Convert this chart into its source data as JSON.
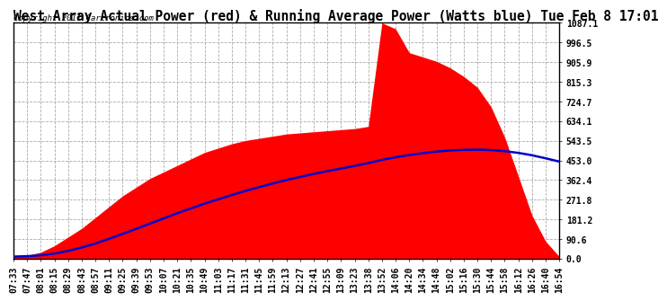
{
  "title": "West Array Actual Power (red) & Running Average Power (Watts blue) Tue Feb 8 17:01",
  "copyright": "Copyright 2011 Cartronics.com",
  "y_max": 1087.1,
  "y_min": 0.0,
  "y_ticks": [
    0.0,
    90.6,
    181.2,
    271.8,
    362.4,
    453.0,
    543.5,
    634.1,
    724.7,
    815.3,
    905.9,
    996.5,
    1087.1
  ],
  "y_tick_labels": [
    "0.0",
    "90.6",
    "181.2",
    "271.8",
    "362.4",
    "453.0",
    "543.5",
    "634.1",
    "724.7",
    "815.3",
    "905.9",
    "996.5",
    "1087.1"
  ],
  "x_labels": [
    "07:33",
    "07:47",
    "08:01",
    "08:15",
    "08:29",
    "08:43",
    "08:57",
    "09:11",
    "09:25",
    "09:39",
    "09:53",
    "10:07",
    "10:21",
    "10:35",
    "10:49",
    "11:03",
    "11:17",
    "11:31",
    "11:45",
    "11:59",
    "12:13",
    "12:27",
    "12:41",
    "12:55",
    "13:09",
    "13:23",
    "13:38",
    "13:52",
    "14:06",
    "14:20",
    "14:34",
    "14:48",
    "15:02",
    "15:16",
    "15:30",
    "15:44",
    "15:58",
    "16:12",
    "16:26",
    "16:40",
    "16:54"
  ],
  "actual_power": [
    10,
    15,
    30,
    60,
    100,
    140,
    190,
    240,
    290,
    330,
    370,
    400,
    430,
    460,
    490,
    510,
    530,
    545,
    555,
    565,
    575,
    580,
    585,
    590,
    595,
    600,
    610,
    1087,
    1060,
    950,
    930,
    910,
    880,
    840,
    790,
    700,
    560,
    380,
    200,
    80,
    10
  ],
  "running_avg": [
    10,
    12,
    16,
    24,
    36,
    52,
    70,
    92,
    115,
    138,
    162,
    186,
    210,
    232,
    254,
    274,
    294,
    313,
    330,
    347,
    363,
    377,
    391,
    404,
    416,
    428,
    441,
    456,
    468,
    478,
    487,
    494,
    499,
    502,
    503,
    501,
    496,
    488,
    477,
    463,
    448
  ],
  "area_color": "#FF0000",
  "line_color": "#0000CC",
  "bg_color": "#FFFFFF",
  "plot_bg_color": "#FFFFFF",
  "grid_color": "#AAAAAA",
  "title_fontsize": 10.5,
  "tick_fontsize": 7,
  "copyright_fontsize": 6.5
}
